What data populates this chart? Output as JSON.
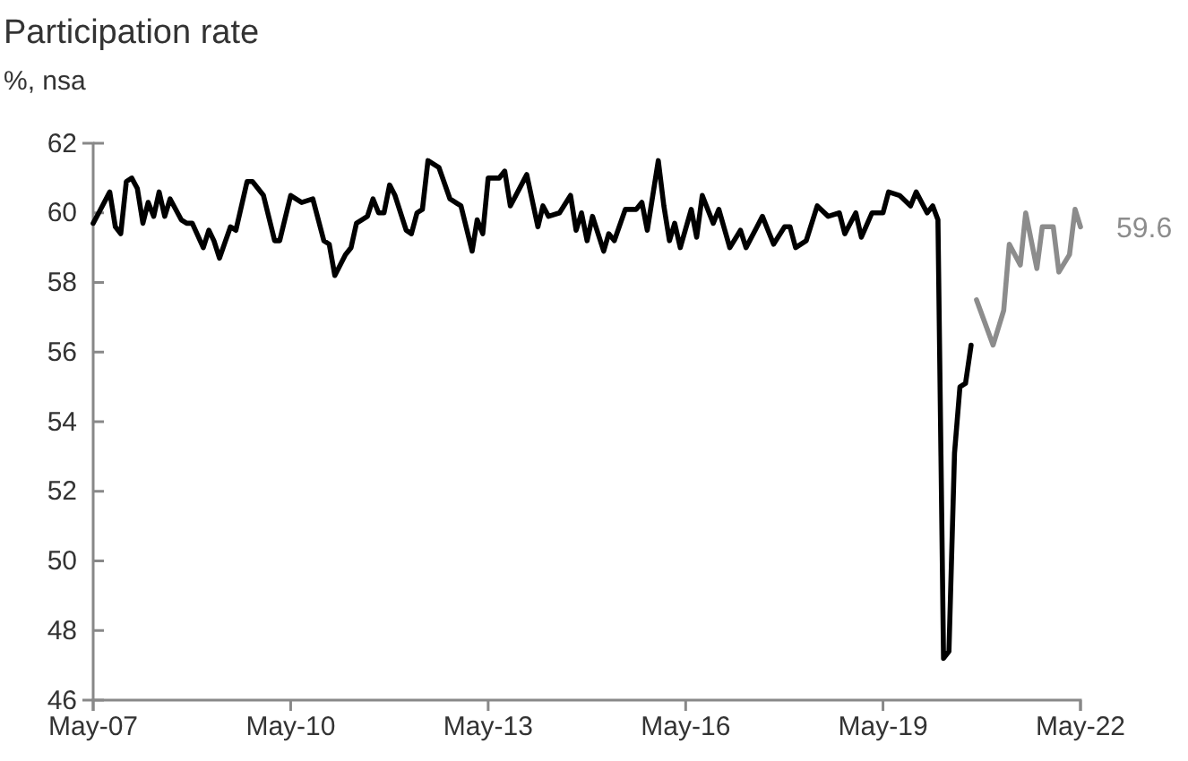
{
  "chart_data": {
    "type": "line",
    "title": "Participation rate",
    "subtitle": "%, nsa",
    "xlim": [
      "2007-05",
      "2022-05"
    ],
    "xticks": [
      {
        "value": "2007-05",
        "label": "May-07"
      },
      {
        "value": "2010-05",
        "label": "May-10"
      },
      {
        "value": "2013-05",
        "label": "May-13"
      },
      {
        "value": "2016-05",
        "label": "May-16"
      },
      {
        "value": "2019-05",
        "label": "May-19"
      },
      {
        "value": "2022-05",
        "label": "May-22"
      }
    ],
    "ylim": [
      46,
      62
    ],
    "yticks": [
      46,
      48,
      50,
      52,
      54,
      56,
      58,
      60,
      62
    ],
    "line_style": "solid",
    "marker": "none",
    "series": [
      {
        "color": "#000000",
        "x": [
          "2007-05",
          "2007-06",
          "2007-08",
          "2007-09",
          "2007-10",
          "2007-11",
          "2007-12",
          "2008-01",
          "2008-02",
          "2008-03",
          "2008-04",
          "2008-05",
          "2008-06",
          "2008-07",
          "2008-09",
          "2008-10",
          "2008-11",
          "2009-01",
          "2009-02",
          "2009-03",
          "2009-04",
          "2009-06",
          "2009-07",
          "2009-09",
          "2009-10",
          "2009-12",
          "2010-02",
          "2010-03",
          "2010-05",
          "2010-07",
          "2010-09",
          "2010-11",
          "2010-12",
          "2011-01",
          "2011-03",
          "2011-04",
          "2011-05",
          "2011-07",
          "2011-08",
          "2011-09",
          "2011-10",
          "2011-11",
          "2011-12",
          "2012-02",
          "2012-03",
          "2012-04",
          "2012-05",
          "2012-06",
          "2012-08",
          "2012-10",
          "2012-12",
          "2013-02",
          "2013-03",
          "2013-04",
          "2013-05",
          "2013-07",
          "2013-08",
          "2013-09",
          "2013-11",
          "2013-12",
          "2014-02",
          "2014-03",
          "2014-04",
          "2014-06",
          "2014-08",
          "2014-09",
          "2014-10",
          "2014-11",
          "2014-12",
          "2015-02",
          "2015-03",
          "2015-04",
          "2015-06",
          "2015-08",
          "2015-09",
          "2015-10",
          "2015-12",
          "2016-01",
          "2016-02",
          "2016-03",
          "2016-04",
          "2016-06",
          "2016-07",
          "2016-08",
          "2016-10",
          "2016-11",
          "2017-01",
          "2017-03",
          "2017-04",
          "2017-06",
          "2017-07",
          "2017-09",
          "2017-11",
          "2017-12",
          "2018-01",
          "2018-03",
          "2018-05",
          "2018-07",
          "2018-09",
          "2018-10",
          "2018-12",
          "2019-01",
          "2019-03",
          "2019-05",
          "2019-06",
          "2019-08",
          "2019-10",
          "2019-11",
          "2020-01",
          "2020-02",
          "2020-03",
          "2020-04",
          "2020-05",
          "2020-06",
          "2020-07",
          "2020-08",
          "2020-09"
        ],
        "values": [
          59.7,
          60.0,
          60.6,
          59.6,
          59.4,
          60.9,
          61.0,
          60.7,
          59.7,
          60.3,
          59.9,
          60.6,
          59.9,
          60.4,
          59.8,
          59.7,
          59.7,
          59.0,
          59.5,
          59.2,
          58.7,
          59.6,
          59.5,
          60.9,
          60.9,
          60.5,
          59.2,
          59.2,
          60.5,
          60.3,
          60.4,
          59.2,
          59.1,
          58.2,
          58.8,
          59.0,
          59.7,
          59.9,
          60.4,
          60.0,
          60.0,
          60.8,
          60.5,
          59.5,
          59.4,
          60.0,
          60.1,
          61.5,
          61.3,
          60.4,
          60.2,
          58.9,
          59.8,
          59.4,
          61.0,
          61.0,
          61.2,
          60.2,
          60.8,
          61.1,
          59.6,
          60.2,
          59.9,
          60.0,
          60.5,
          59.5,
          60.0,
          59.2,
          59.9,
          58.9,
          59.4,
          59.2,
          60.1,
          60.1,
          60.3,
          59.5,
          61.5,
          60.2,
          59.2,
          59.7,
          59.0,
          60.1,
          59.3,
          60.5,
          59.7,
          60.1,
          59.0,
          59.5,
          59.0,
          59.6,
          59.9,
          59.1,
          59.6,
          59.6,
          59.0,
          59.2,
          60.2,
          59.9,
          60.0,
          59.4,
          60.0,
          59.3,
          60.0,
          60.0,
          60.6,
          60.5,
          60.2,
          60.6,
          60.0,
          60.2,
          59.8,
          47.2,
          47.4,
          53.1,
          55.0,
          55.1,
          56.2
        ]
      },
      {
        "color": "#8c8c8c",
        "x": [
          "2020-10",
          "2021-01",
          "2021-03",
          "2021-04",
          "2021-06",
          "2021-07",
          "2021-09",
          "2021-10",
          "2021-12",
          "2022-01",
          "2022-03",
          "2022-04",
          "2022-05"
        ],
        "values": [
          57.5,
          56.2,
          57.2,
          59.1,
          58.5,
          60.0,
          58.4,
          59.6,
          59.6,
          58.3,
          58.8,
          60.1,
          59.6
        ]
      }
    ],
    "annotations": [
      {
        "text": "59.6",
        "x": "2022-05",
        "y": 59.6
      }
    ]
  }
}
